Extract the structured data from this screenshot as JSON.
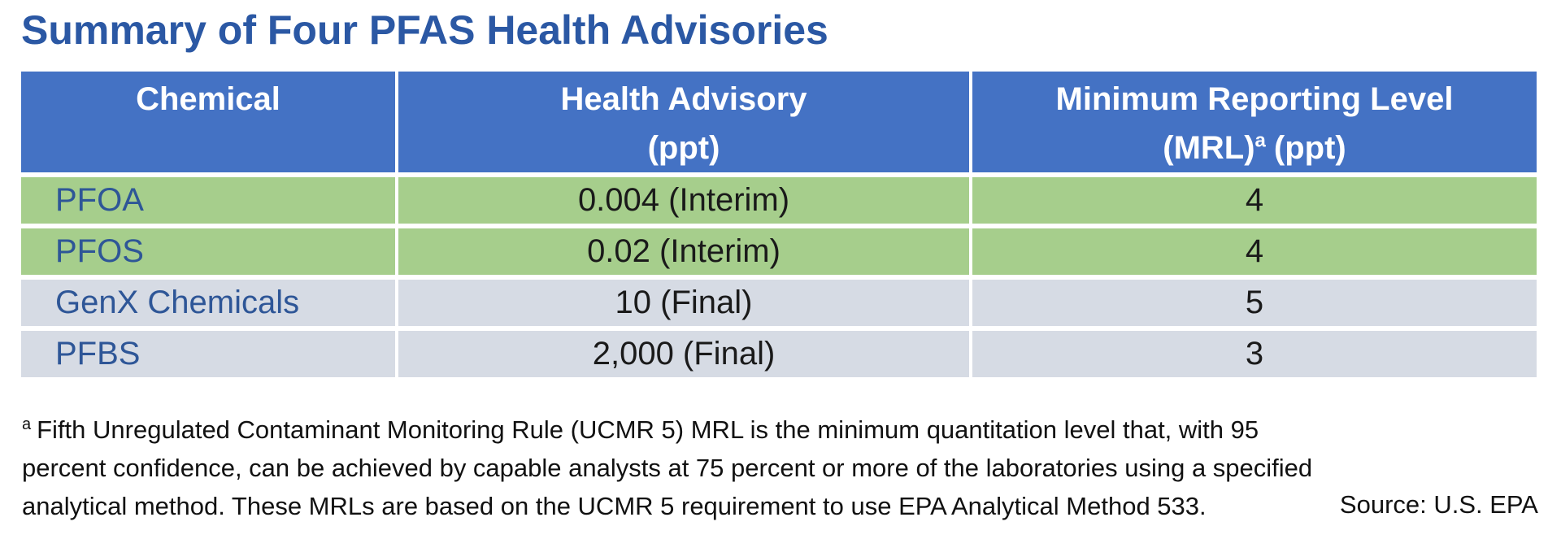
{
  "page": {
    "title": "Summary of Four PFAS Health Advisories",
    "background": "#ffffff"
  },
  "colors": {
    "title_text": "#2B58A4",
    "header_bg": "#4472C4",
    "header_text": "#ffffff",
    "row_band_green": "#A6CE8C",
    "row_band_gray": "#D6DBE4",
    "chemical_text": "#2E5697",
    "value_text": "#1a1a1a",
    "divider": "#ffffff"
  },
  "table": {
    "columns": [
      {
        "line1": "Chemical"
      },
      {
        "line1": "Health Advisory",
        "line2": "(ppt)"
      },
      {
        "line1": "Minimum Reporting Level",
        "line2_pre": "(MRL)",
        "line2_sup": "a",
        "line2_post": "(ppt)"
      }
    ],
    "rows": [
      {
        "chemical": "PFOA",
        "health_advisory": "0.004 (Interim)",
        "mrl": "4",
        "band": "green"
      },
      {
        "chemical": "PFOS",
        "health_advisory": "0.02 (Interim)",
        "mrl": "4",
        "band": "green"
      },
      {
        "chemical": "GenX Chemicals",
        "health_advisory": "10 (Final)",
        "mrl": "5",
        "band": "gray"
      },
      {
        "chemical": "PFBS",
        "health_advisory": "2,000 (Final)",
        "mrl": "3",
        "band": "gray"
      }
    ]
  },
  "footnote": {
    "marker": "a",
    "line1": "Fifth Unregulated Contaminant Monitoring Rule (UCMR 5) MRL is the minimum quantitation level that, with 95",
    "line2": "percent confidence, can be achieved by capable analysts at 75 percent or more of the laboratories using a specified",
    "line3": "analytical method. These MRLs are based on the UCMR 5 requirement to use EPA Analytical Method 533.",
    "source": "Source: U.S. EPA"
  }
}
